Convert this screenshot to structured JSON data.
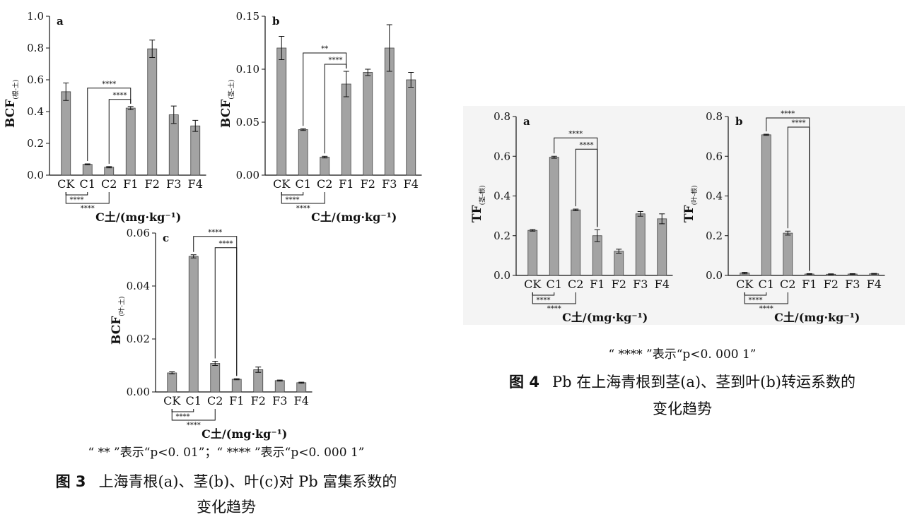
{
  "stars_2": "**",
  "stars_4": "****",
  "xlabel": "C土/(mg·kg⁻¹)",
  "fig3": {
    "note": "“ ** ”表示“p<0. 01”；“ **** ”表示“p<0. 000 1”",
    "label": "图 3",
    "title_line1": "上海青根(a)、茎(b)、叶(c)对 Pb 富集系数的",
    "title_line2": "变化趋势"
  },
  "fig4": {
    "note": "“ **** ”表示“p<0. 000 1”",
    "label": "图 4",
    "title_line1": "Pb 在上海青根到茎(a)、茎到叶(b)转运系数的",
    "title_line2": "变化趋势"
  },
  "chart_data": [
    {
      "id": "fig3a",
      "panel_label": "a",
      "type": "bar",
      "ylabel_main": "BCF",
      "ylabel_sub": "(根-土)",
      "categories": [
        "CK",
        "C1",
        "C2",
        "F1",
        "F2",
        "F3",
        "F4"
      ],
      "values": [
        0.525,
        0.068,
        0.05,
        0.422,
        0.795,
        0.38,
        0.31
      ],
      "errors": [
        0.055,
        0.003,
        0.004,
        0.01,
        0.055,
        0.055,
        0.035
      ],
      "ylim": [
        0,
        1.0
      ],
      "yticks": [
        "0.0",
        "0.2",
        "0.4",
        "0.6",
        "0.8",
        "1.0"
      ],
      "brackets": [
        {
          "from": 1,
          "to": 3,
          "label": "****"
        },
        {
          "from": 2,
          "to": 3,
          "label": "****"
        }
      ],
      "bottom_brackets": [
        {
          "from": 0,
          "to": 1,
          "label": "****"
        },
        {
          "from": 0,
          "to": 2,
          "label": "****"
        }
      ]
    },
    {
      "id": "fig3b",
      "panel_label": "b",
      "type": "bar",
      "ylabel_main": "BCF",
      "ylabel_sub": "(茎-土)",
      "categories": [
        "CK",
        "C1",
        "C2",
        "F1",
        "F2",
        "F3",
        "F4"
      ],
      "values": [
        0.12,
        0.043,
        0.017,
        0.086,
        0.097,
        0.12,
        0.09
      ],
      "errors": [
        0.011,
        0.0008,
        0.0008,
        0.012,
        0.003,
        0.022,
        0.007
      ],
      "ylim": [
        0,
        0.15
      ],
      "yticks": [
        "0.00",
        "0.05",
        "0.10",
        "0.15"
      ],
      "brackets": [
        {
          "from": 1,
          "to": 3,
          "label": "**"
        },
        {
          "from": 2,
          "to": 3,
          "label": "****"
        }
      ],
      "bottom_brackets": [
        {
          "from": 0,
          "to": 1,
          "label": "****"
        },
        {
          "from": 0,
          "to": 2,
          "label": "****"
        }
      ]
    },
    {
      "id": "fig3c",
      "panel_label": "c",
      "type": "bar",
      "ylabel_main": "BCF",
      "ylabel_sub": "(叶-土)",
      "categories": [
        "CK",
        "C1",
        "C2",
        "F1",
        "F2",
        "F3",
        "F4"
      ],
      "values": [
        0.0072,
        0.0512,
        0.0108,
        0.0048,
        0.0084,
        0.0043,
        0.0035
      ],
      "errors": [
        0.0004,
        0.0006,
        0.0008,
        0.0002,
        0.001,
        0.0002,
        0.0002
      ],
      "ylim": [
        0,
        0.06
      ],
      "yticks": [
        "0.00",
        "0.02",
        "0.04",
        "0.06"
      ],
      "brackets": [
        {
          "from": 1,
          "to": 3,
          "label": "****"
        },
        {
          "from": 2,
          "to": 3,
          "label": "****"
        }
      ],
      "bottom_brackets": [
        {
          "from": 0,
          "to": 1,
          "label": "****"
        },
        {
          "from": 0,
          "to": 2,
          "label": "****"
        }
      ]
    },
    {
      "id": "fig4a",
      "panel_label": "a",
      "type": "bar",
      "ylabel_main": "TF",
      "ylabel_sub": "(茎-根)",
      "categories": [
        "CK",
        "C1",
        "C2",
        "F1",
        "F2",
        "F3",
        "F4"
      ],
      "values": [
        0.227,
        0.595,
        0.33,
        0.2,
        0.122,
        0.31,
        0.285
      ],
      "errors": [
        0.004,
        0.005,
        0.004,
        0.03,
        0.01,
        0.012,
        0.025
      ],
      "ylim": [
        0,
        0.8
      ],
      "yticks": [
        "0.0",
        "0.2",
        "0.4",
        "0.6",
        "0.8"
      ],
      "brackets": [
        {
          "from": 1,
          "to": 3,
          "label": "****"
        },
        {
          "from": 2,
          "to": 3,
          "label": "****"
        }
      ],
      "bottom_brackets": [
        {
          "from": 0,
          "to": 1,
          "label": "****"
        },
        {
          "from": 0,
          "to": 2,
          "label": "****"
        }
      ]
    },
    {
      "id": "fig4b",
      "panel_label": "b",
      "type": "bar",
      "ylabel_main": "TF",
      "ylabel_sub": "(叶-根)",
      "categories": [
        "CK",
        "C1",
        "C2",
        "F1",
        "F2",
        "F3",
        "F4"
      ],
      "values": [
        0.012,
        0.708,
        0.213,
        0.007,
        0.006,
        0.007,
        0.008
      ],
      "errors": [
        0.004,
        0.003,
        0.01,
        0.002,
        0.002,
        0.002,
        0.002
      ],
      "ylim": [
        0,
        0.8
      ],
      "yticks": [
        "0.0",
        "0.2",
        "0.4",
        "0.6",
        "0.8"
      ],
      "brackets": [
        {
          "from": 1,
          "to": 3,
          "label": "****"
        },
        {
          "from": 2,
          "to": 3,
          "label": "****"
        }
      ],
      "bottom_brackets": [
        {
          "from": 0,
          "to": 1,
          "label": "****"
        },
        {
          "from": 0,
          "to": 2,
          "label": "****"
        }
      ]
    }
  ]
}
